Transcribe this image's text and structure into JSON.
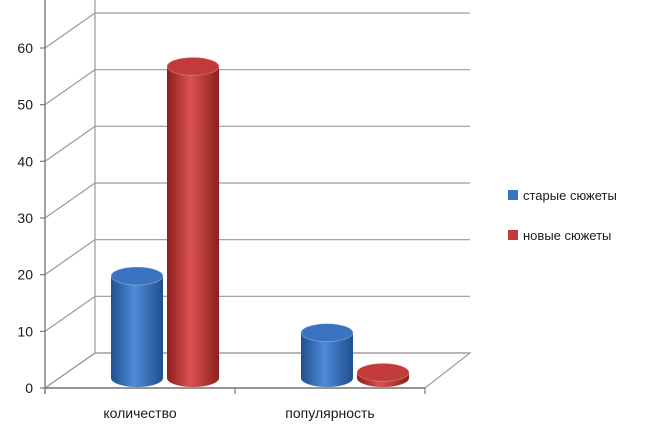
{
  "chart_data": {
    "type": "bar",
    "style": "3d-cylinder",
    "categories": [
      "количество",
      "популярность"
    ],
    "series": [
      {
        "name": "старые сюжеты",
        "values": [
          18,
          8
        ],
        "color": "#3a74c0"
      },
      {
        "name": "новые сюжеты",
        "values": [
          55,
          1
        ],
        "color": "#c23b39"
      }
    ],
    "yticks": [
      "0",
      "10",
      "20",
      "30",
      "40",
      "50",
      "60"
    ],
    "ylim": [
      0,
      60
    ],
    "grid": true,
    "legend_position": "right"
  }
}
